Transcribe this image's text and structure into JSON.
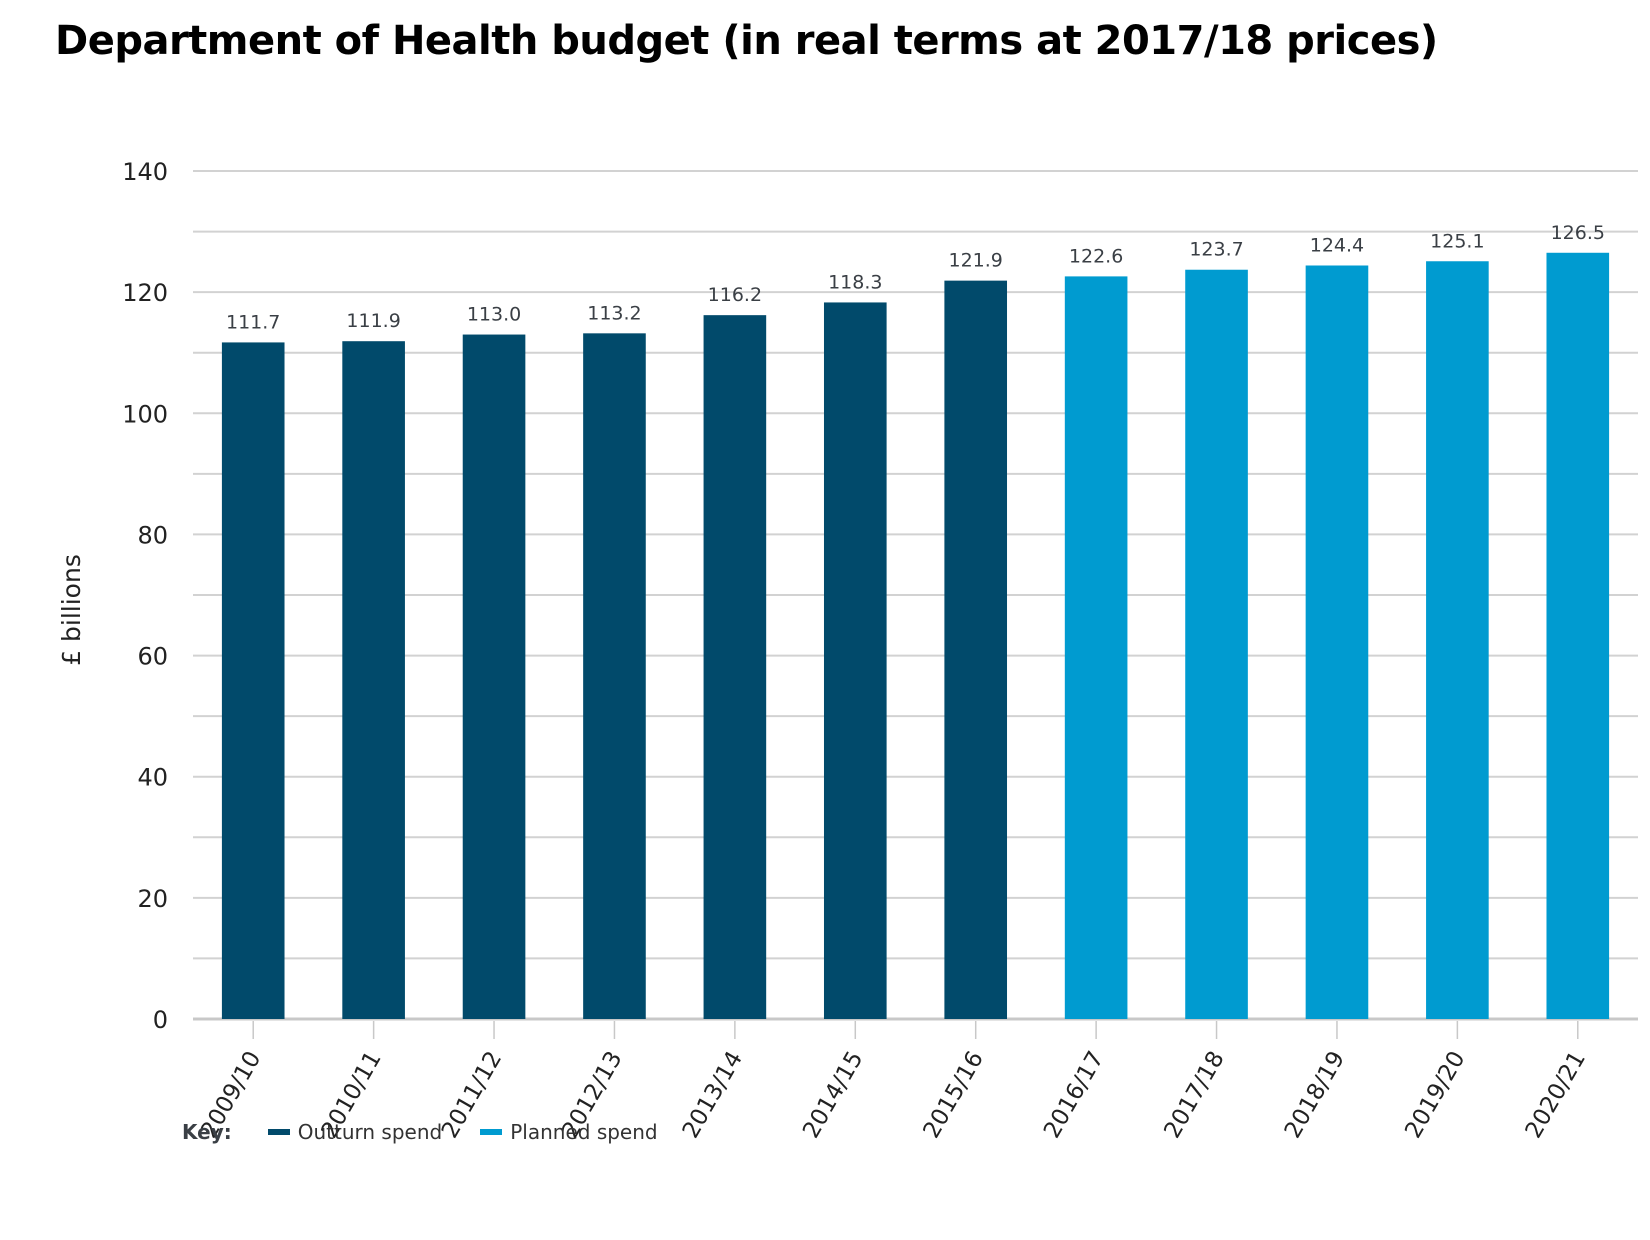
{
  "chart_data": {
    "type": "bar",
    "title": "Department of Health budget (in real terms at 2017/18 prices)",
    "xlabel": "",
    "ylabel": "£ billions",
    "ylim": [
      0,
      140
    ],
    "yticks": [
      0,
      20,
      40,
      60,
      80,
      100,
      120,
      140
    ],
    "grid": true,
    "categories": [
      "2009/10",
      "2010/11",
      "2011/12",
      "2012/13",
      "2013/14",
      "2014/15",
      "2015/16",
      "2016/17",
      "2017/18",
      "2018/19",
      "2019/20",
      "2020/21"
    ],
    "values": [
      111.7,
      111.9,
      113.0,
      113.2,
      116.2,
      118.3,
      121.9,
      122.6,
      123.7,
      124.4,
      125.1,
      126.5
    ],
    "data_labels": [
      "111.7",
      "111.9",
      "113.0",
      "113.2",
      "116.2",
      "118.3",
      "121.9",
      "122.6",
      "123.7",
      "124.4",
      "125.1",
      "126.5"
    ],
    "bar_series": [
      "Outturn spend",
      "Outturn spend",
      "Outturn spend",
      "Outturn spend",
      "Outturn spend",
      "Outturn spend",
      "Outturn spend",
      "Planned spend",
      "Planned spend",
      "Planned spend",
      "Planned spend",
      "Planned spend"
    ],
    "series": [
      {
        "name": "Outturn spend",
        "color": "#014a6b"
      },
      {
        "name": "Planned spend",
        "color": "#009bd0"
      }
    ],
    "legend": {
      "title": "Key:",
      "placement": "bottom-left"
    }
  }
}
